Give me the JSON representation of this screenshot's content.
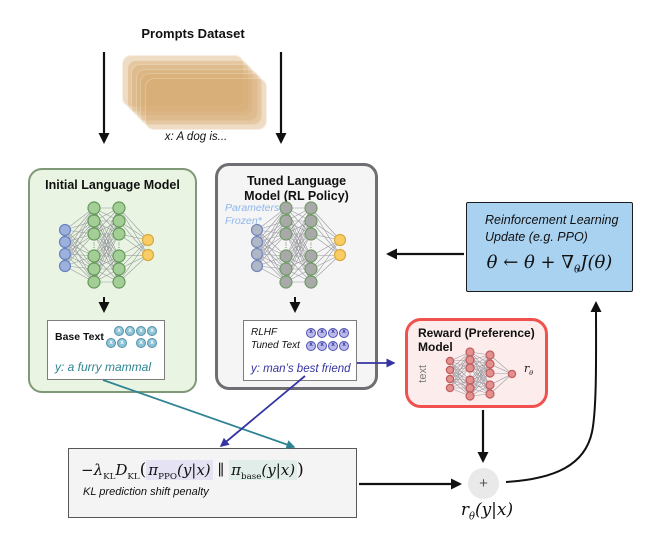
{
  "token_char": "x",
  "prompts": {
    "title": "Prompts Dataset",
    "example": "x: A dog is..."
  },
  "initial": {
    "title": "Initial Language Model",
    "output_label": "Base Text",
    "output_text": "y: a furry mammal",
    "token_rows": [
      [
        4
      ],
      [
        2,
        2
      ]
    ]
  },
  "tuned": {
    "title1": "Tuned Language",
    "title2": "Model (RL Policy)",
    "frozen1": "Parameters",
    "frozen2": "Frozen*",
    "label1": "RLHF",
    "label2": "Tuned Text",
    "output_text": "y: man’s best friend",
    "token_rows1": [
      [
        4
      ]
    ],
    "token_rows2": [
      [
        4
      ]
    ]
  },
  "reward": {
    "title1": "Reward (Preference)",
    "title2": "Model",
    "input_label": "text",
    "out_r": "r",
    "out_sub": "θ"
  },
  "rl": {
    "line1": "Reinforcement Learning",
    "line2": "Update (e.g. PPO)",
    "f_pre": "θ ← θ + ∇",
    "f_sub": "θ",
    "f_post": "J(θ)"
  },
  "kl": {
    "f_neg_lambda": "−λ",
    "f_sub1": "KL",
    "f_D": "D",
    "f_sub2": "KL",
    "f_open": "(",
    "f_pi1": "π",
    "f_sub_ppo": "PPO",
    "f_args1": "(y|x)",
    "f_bars": "∥",
    "f_pi2": "π",
    "f_sub_base": "base",
    "f_args2": "(y|x)",
    "f_close": ")",
    "caption": "KL prediction shift penalty"
  },
  "plus": "+",
  "output": {
    "f_r": "r",
    "f_sub": "θ",
    "f_args": "(y|x)"
  },
  "colors": {
    "card": "#d9ad75",
    "initial_box_bg": "#e9f5e2",
    "initial_box_border": "#7f9878",
    "tuned_box_bg": "#f5f5f6",
    "tuned_box_border": "#6f6f73",
    "reward_box_bg": "#fdecec",
    "reward_box_border": "#f0514e",
    "rl_box_bg": "#a9d2f1",
    "rl_box_border": "#1c1c1c",
    "kl_box_bg": "#f4f4f4",
    "kl_box_border": "#57575b",
    "teal": "#2e8492",
    "navy": "#3434a4",
    "frozen_note": "#8db6ec",
    "node_blue_fill": "#9db1dd",
    "node_blue_stroke": "#6a82c0",
    "node_green_fill": "#a3cf96",
    "node_green_stroke": "#63985a",
    "node_yellow_fill": "#f9cd63",
    "node_yellow_stroke": "#d8a93f",
    "node_gray_fill": "#a9a9a9",
    "node_gray_stroke": "#6f9c64",
    "node_grayblue_fill": "#b0b7c6",
    "node_grayblue_stroke": "#7187bd",
    "node_pink_fill": "#e29090",
    "node_pink_stroke": "#c25b5b",
    "token_teal_bg": "#8fc3d6",
    "token_teal_border": "#4f93ab",
    "token_teal_char": "#ffffff",
    "token_purple_bg": "#b9b9ea",
    "token_purple_border": "#5252b5",
    "token_purple_char": "#32329b",
    "hl_ppo": "#e5e2f3",
    "hl_base": "#e1ede8",
    "plus_bg": "#e9e9e9"
  }
}
